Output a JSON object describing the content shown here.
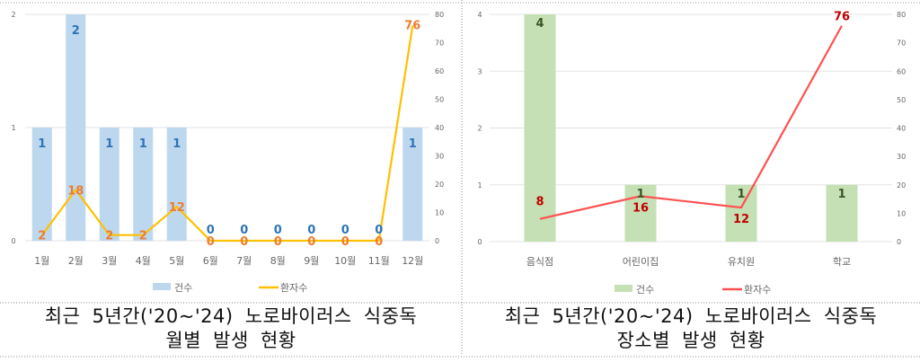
{
  "chart_data": [
    {
      "type": "bar+line",
      "categories": [
        "1월",
        "2월",
        "3월",
        "4월",
        "5월",
        "6월",
        "7월",
        "8월",
        "9월",
        "10월",
        "11월",
        "12월"
      ],
      "series": [
        {
          "name": "건수",
          "type": "bar",
          "axis": "left",
          "values": [
            1,
            2,
            1,
            1,
            1,
            0,
            0,
            0,
            0,
            0,
            0,
            1
          ],
          "color": "#bdd7ee",
          "label_color": "#2e75b6"
        },
        {
          "name": "환자수",
          "type": "line",
          "axis": "right",
          "values": [
            2,
            18,
            2,
            2,
            12,
            0,
            0,
            0,
            0,
            0,
            0,
            76
          ],
          "color": "#ffc000",
          "label_color": "#ed7d31"
        }
      ],
      "left_ylim": [
        0,
        2
      ],
      "left_ticks": [
        "0",
        "1",
        "2"
      ],
      "right_ylim": [
        0,
        80
      ],
      "right_ticks": [
        "0",
        "10",
        "20",
        "30",
        "40",
        "50",
        "60",
        "70",
        "80"
      ],
      "grid": true,
      "legend": "bottom",
      "title": "최근 5년간('20~'24) 노로바이러스 식중독",
      "subtitle": "월별 발생 현황"
    },
    {
      "type": "bar+line",
      "categories": [
        "음식점",
        "어린이집",
        "유치원",
        "학교"
      ],
      "series": [
        {
          "name": "건수",
          "type": "bar",
          "axis": "left",
          "values": [
            4,
            1,
            1,
            1
          ],
          "color": "#c5e0b4",
          "label_color": "#375623"
        },
        {
          "name": "환자수",
          "type": "line",
          "axis": "right",
          "values": [
            8,
            16,
            12,
            76
          ],
          "color": "#ff5050",
          "label_color": "#c00000"
        }
      ],
      "left_ylim": [
        0,
        4
      ],
      "left_ticks": [
        "0",
        "1",
        "2",
        "3",
        "4"
      ],
      "right_ylim": [
        0,
        80
      ],
      "right_ticks": [
        "0",
        "10",
        "20",
        "30",
        "40",
        "50",
        "60",
        "70",
        "80"
      ],
      "grid": true,
      "legend": "bottom",
      "title": "최근 5년간('20~'24) 노로바이러스 식중독",
      "subtitle": "장소별 발생 현황"
    }
  ]
}
